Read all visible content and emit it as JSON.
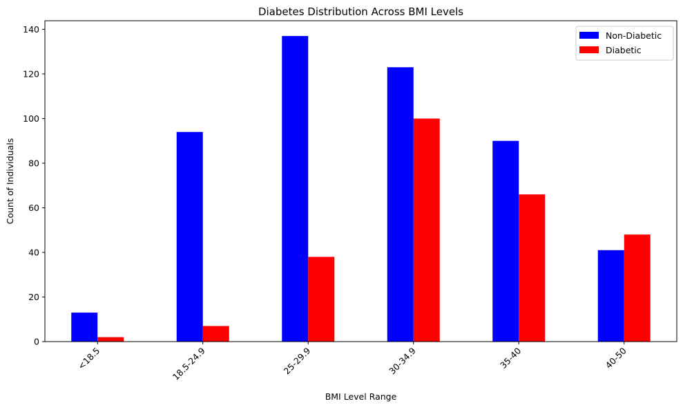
{
  "chart_data": {
    "type": "bar",
    "title": "Diabetes Distribution Across BMI Levels",
    "xlabel": "BMI Level Range",
    "ylabel": "Count of Individuals",
    "categories": [
      "<18.5",
      "18.5-24.9",
      "25-29.9",
      "30-34.9",
      "35-40",
      "40-50"
    ],
    "series": [
      {
        "name": "Non-Diabetic",
        "color": "#0000ff",
        "values": [
          13,
          94,
          137,
          123,
          90,
          41
        ]
      },
      {
        "name": "Diabetic",
        "color": "#ff0000",
        "values": [
          2,
          7,
          38,
          100,
          66,
          48
        ]
      }
    ],
    "ylim": [
      0,
      143.85
    ],
    "yticks": [
      0,
      20,
      40,
      60,
      80,
      100,
      120,
      140
    ],
    "grid": false,
    "legend_position": "top-right"
  }
}
